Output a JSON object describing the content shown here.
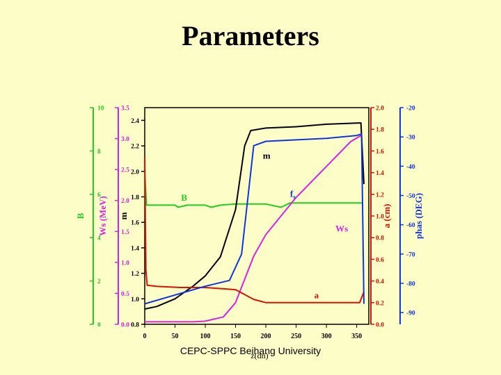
{
  "page": {
    "title": "Parameters",
    "footer": "CEPC-SPPC Beihang University"
  },
  "chart_data": {
    "type": "line",
    "xlabel": "z(dn)",
    "x_ticks": [
      0,
      50,
      100,
      150,
      200,
      250,
      300,
      350
    ],
    "xlim": [
      0,
      370
    ],
    "axes": [
      {
        "id": "B",
        "label": "B",
        "color": "#22cc22",
        "ylim": [
          0,
          10
        ],
        "ticks": [
          0,
          2,
          4,
          6,
          8,
          10
        ]
      },
      {
        "id": "Ws",
        "label": "Ws (MeV)",
        "color": "#dd22dd",
        "ylim": [
          0,
          3.5
        ],
        "ticks": [
          "0.0",
          "0.5",
          "1.0",
          "1.5",
          "2.0",
          "2.5",
          "3.0",
          "3.5"
        ]
      },
      {
        "id": "m",
        "label": "m",
        "color": "#000000",
        "ylim": [
          0.8,
          2.5
        ],
        "ticks": [
          "0.8",
          "1.0",
          "1.2",
          "1.4",
          "1.6",
          "1.8",
          "2.0",
          "2.2",
          "2.4"
        ]
      },
      {
        "id": "a",
        "label": "a (cm)",
        "color": "#dd1100",
        "ylim": [
          0,
          2.0
        ],
        "ticks": [
          "0.0",
          "0.2",
          "0.4",
          "0.6",
          "0.8",
          "1.0",
          "1.2",
          "1.4",
          "1.6",
          "1.8",
          "2.0"
        ]
      },
      {
        "id": "phas",
        "label": "phas (DEG)",
        "color": "#1133dd",
        "ylim": [
          -94,
          -20
        ],
        "ticks": [
          "-90",
          "-80",
          "-70",
          "-60",
          "-50",
          "-40",
          "-30",
          "-20"
        ]
      }
    ],
    "series": [
      {
        "name": "B",
        "axis": "B",
        "color": "#22cc22",
        "x": [
          0,
          3,
          20,
          50,
          55,
          70,
          80,
          100,
          110,
          125,
          150,
          200,
          225,
          240,
          300,
          360
        ],
        "y": [
          7,
          5.5,
          5.5,
          5.5,
          5.4,
          5.5,
          5.5,
          5.5,
          5.4,
          5.5,
          5.55,
          5.55,
          5.4,
          5.6,
          5.6,
          5.6
        ]
      },
      {
        "name": "Ws",
        "axis": "Ws",
        "color": "#dd22dd",
        "x": [
          0,
          80,
          100,
          130,
          150,
          180,
          200,
          250,
          300,
          340,
          357
        ],
        "y": [
          0.04,
          0.04,
          0.05,
          0.12,
          0.35,
          1.1,
          1.45,
          2.05,
          2.55,
          2.95,
          3.05
        ]
      },
      {
        "name": "m",
        "axis": "m",
        "color": "#000000",
        "x": [
          0,
          20,
          50,
          80,
          100,
          125,
          150,
          165,
          175,
          200,
          250,
          300,
          357,
          362
        ],
        "y": [
          0.92,
          0.94,
          1.0,
          1.1,
          1.18,
          1.33,
          1.7,
          2.2,
          2.32,
          2.34,
          2.35,
          2.37,
          2.38,
          1.9
        ]
      },
      {
        "name": "a",
        "axis": "a",
        "color": "#dd1100",
        "x": [
          0,
          2,
          4,
          20,
          60,
          100,
          150,
          180,
          200,
          250,
          300,
          355,
          362
        ],
        "y": [
          1.55,
          0.5,
          0.36,
          0.35,
          0.34,
          0.34,
          0.32,
          0.23,
          0.2,
          0.2,
          0.2,
          0.2,
          0.3
        ]
      },
      {
        "name": "phas",
        "axis": "phas",
        "color": "#1133dd",
        "x": [
          0,
          50,
          100,
          140,
          160,
          180,
          200,
          250,
          300,
          350,
          358,
          362
        ],
        "y": [
          -87,
          -84,
          -81,
          -79,
          -70,
          -33,
          -31.5,
          -31,
          -30.5,
          -29.5,
          -29,
          -87
        ]
      }
    ],
    "annotations": [
      {
        "text": "m",
        "x": 195,
        "y": 2.1,
        "axis": "m",
        "color": "#000000"
      },
      {
        "text": "fs",
        "x": 240,
        "y": 1.8,
        "axis": "m",
        "color": "#1133dd"
      },
      {
        "text": "B",
        "x": 60,
        "y": 5.7,
        "axis": "B",
        "color": "#22cc22"
      },
      {
        "text": "Ws",
        "x": 315,
        "y": 1.5,
        "axis": "Ws",
        "color": "#dd22dd"
      },
      {
        "text": "a",
        "x": 280,
        "y": 0.24,
        "axis": "a",
        "color": "#dd1100"
      }
    ]
  }
}
